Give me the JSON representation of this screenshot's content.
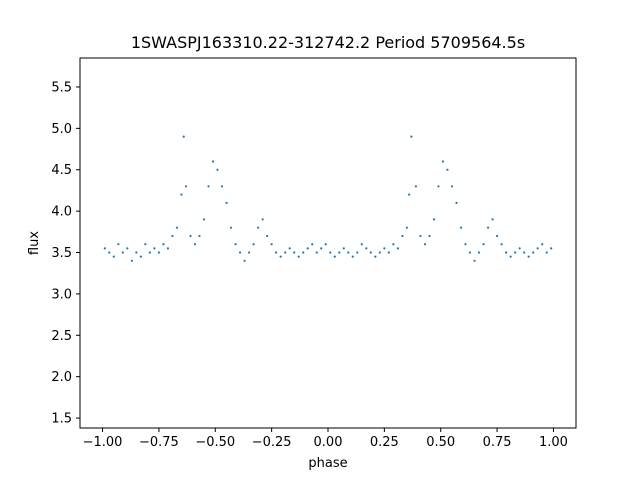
{
  "chart_data": {
    "type": "scatter",
    "title": "1SWASPJ163310.22-312742.2 Period 5709564.5s",
    "xlabel": "phase",
    "ylabel": "flux",
    "xlim": [
      -1.1,
      1.1
    ],
    "ylim": [
      1.38,
      5.85
    ],
    "x_ticks": [
      -1.0,
      -0.75,
      -0.5,
      -0.25,
      0.0,
      0.25,
      0.5,
      0.75,
      1.0
    ],
    "x_tick_labels": [
      "−1.00",
      "−0.75",
      "−0.50",
      "−0.25",
      "0.00",
      "0.25",
      "0.50",
      "0.75",
      "1.00"
    ],
    "y_ticks": [
      1.5,
      2.0,
      2.5,
      3.0,
      3.5,
      4.0,
      4.5,
      5.0,
      5.5
    ],
    "y_tick_labels": [
      "1.5",
      "2.0",
      "2.5",
      "3.0",
      "3.5",
      "4.0",
      "4.5",
      "5.0",
      "5.5"
    ],
    "grid": false,
    "legend": "none",
    "marker_color": "#1f77b4",
    "series": [
      {
        "x": [
          -0.99,
          -0.97,
          -0.95,
          -0.93,
          -0.91,
          -0.89,
          -0.87,
          -0.85,
          -0.83,
          -0.81,
          -0.79,
          -0.77,
          -0.75,
          -0.73,
          -0.71,
          -0.69,
          -0.67,
          -0.65,
          -0.64,
          -0.63,
          -0.61,
          -0.59,
          -0.57,
          -0.55,
          -0.53,
          -0.51,
          -0.49,
          -0.47,
          -0.45,
          -0.43,
          -0.41,
          -0.39,
          -0.37,
          -0.35,
          -0.33,
          -0.31,
          -0.29,
          -0.27,
          -0.25,
          -0.23,
          -0.21,
          -0.19,
          -0.17,
          -0.15,
          -0.13,
          -0.11,
          -0.09,
          -0.07,
          -0.05,
          -0.03,
          -0.01,
          0.01,
          0.03,
          0.05,
          0.07,
          0.09,
          0.11,
          0.13,
          0.15,
          0.17,
          0.19,
          0.21,
          0.23,
          0.25,
          0.27,
          0.29,
          0.31,
          0.33,
          0.35,
          0.36,
          0.37,
          0.39,
          0.41,
          0.43,
          0.45,
          0.47,
          0.49,
          0.51,
          0.53,
          0.55,
          0.57,
          0.59,
          0.61,
          0.63,
          0.65,
          0.67,
          0.69,
          0.71,
          0.73,
          0.75,
          0.77,
          0.79,
          0.81,
          0.83,
          0.85,
          0.87,
          0.89,
          0.91,
          0.93,
          0.95,
          0.97,
          0.99
        ],
        "y": [
          3.55,
          3.5,
          3.45,
          3.6,
          3.5,
          3.55,
          3.4,
          3.5,
          3.45,
          3.6,
          3.5,
          3.55,
          3.5,
          3.6,
          3.55,
          3.7,
          3.8,
          4.2,
          4.9,
          4.3,
          3.7,
          3.6,
          3.7,
          3.9,
          4.3,
          4.6,
          4.5,
          4.3,
          4.1,
          3.8,
          3.6,
          3.5,
          3.4,
          3.5,
          3.6,
          3.8,
          3.9,
          3.7,
          3.6,
          3.5,
          3.45,
          3.5,
          3.55,
          3.5,
          3.45,
          3.5,
          3.55,
          3.6,
          3.5,
          3.55,
          3.6,
          3.5,
          3.45,
          3.5,
          3.55,
          3.5,
          3.45,
          3.5,
          3.6,
          3.55,
          3.5,
          3.45,
          3.5,
          3.55,
          3.5,
          3.6,
          3.55,
          3.7,
          3.8,
          4.2,
          4.9,
          4.3,
          3.7,
          3.6,
          3.7,
          3.9,
          4.3,
          4.6,
          4.5,
          4.3,
          4.1,
          3.8,
          3.6,
          3.5,
          3.4,
          3.5,
          3.6,
          3.8,
          3.9,
          3.7,
          3.6,
          3.5,
          3.45,
          3.5,
          3.55,
          3.5,
          3.45,
          3.5,
          3.55,
          3.6,
          3.5,
          3.55
        ]
      }
    ]
  }
}
